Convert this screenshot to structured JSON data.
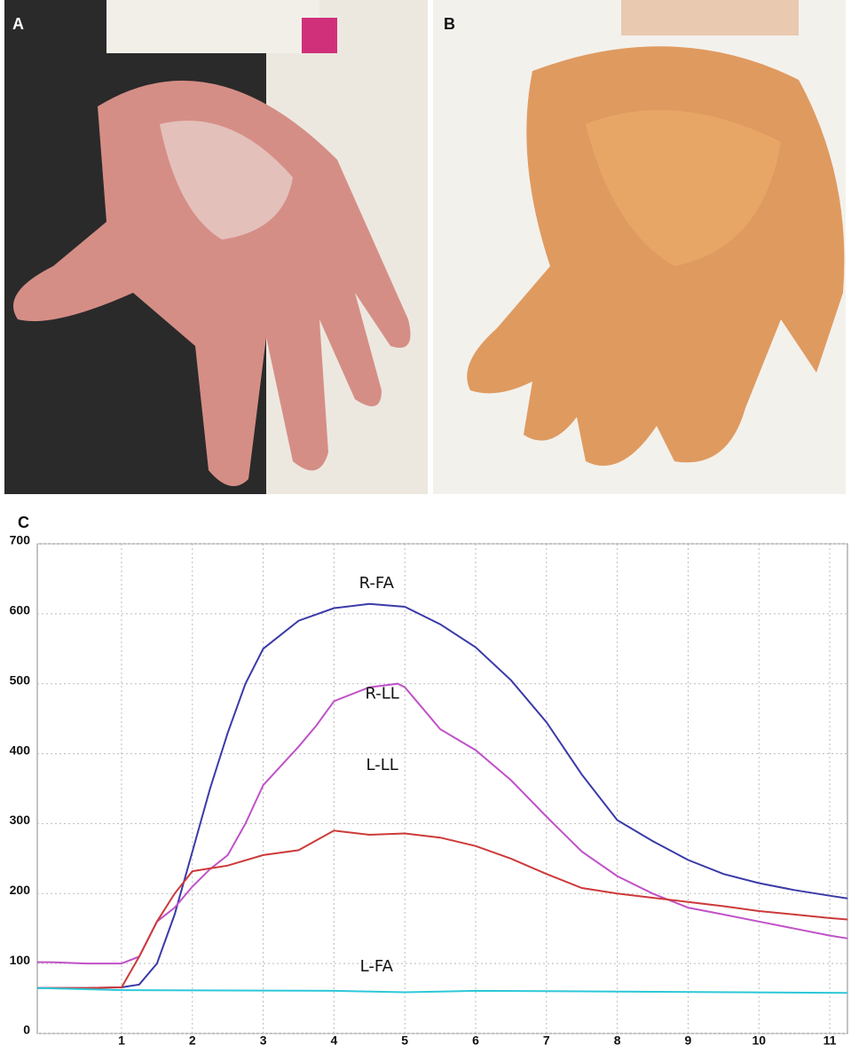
{
  "panels": [
    {
      "label": "A"
    },
    {
      "label": "B"
    }
  ],
  "chart_data": {
    "type": "line",
    "panel_label": "C",
    "xlim": [
      -0.19,
      11.25
    ],
    "ylim": [
      0,
      700
    ],
    "xticks": [
      1,
      2,
      3,
      4,
      5,
      6,
      7,
      8,
      9,
      10,
      11
    ],
    "yticks": [
      0,
      100,
      200,
      300,
      400,
      500,
      600,
      700
    ],
    "grid": true,
    "series": [
      {
        "name": "R-FA",
        "color": "#3a3aa8",
        "x": [
          -0.19,
          0,
          0.5,
          1,
          1.25,
          1.5,
          1.75,
          2,
          2.25,
          2.5,
          2.75,
          3,
          3.5,
          4,
          4.5,
          5,
          5.5,
          6,
          6.5,
          7,
          7.5,
          8,
          8.5,
          9,
          9.5,
          10,
          10.5,
          11,
          11.25
        ],
        "values": [
          65,
          65,
          65,
          66,
          70,
          100,
          170,
          260,
          350,
          430,
          500,
          550,
          590,
          608,
          614,
          610,
          585,
          552,
          505,
          445,
          370,
          305,
          275,
          248,
          228,
          215,
          205,
          197,
          193
        ]
      },
      {
        "name": "R-LL",
        "color": "#c052c8",
        "x": [
          -0.19,
          0,
          0.5,
          1,
          1.25,
          1.5,
          1.75,
          2,
          2.25,
          2.5,
          2.75,
          3,
          3.5,
          3.75,
          4,
          4.5,
          4.9,
          5,
          5.25,
          5.5,
          6,
          6.5,
          7,
          7.5,
          8,
          8.5,
          9,
          9.5,
          10,
          10.5,
          11,
          11.25
        ],
        "values": [
          102,
          102,
          100,
          100,
          110,
          160,
          180,
          210,
          235,
          255,
          300,
          355,
          410,
          440,
          475,
          495,
          500,
          495,
          465,
          435,
          405,
          362,
          310,
          260,
          225,
          200,
          180,
          170,
          160,
          150,
          140,
          136
        ]
      },
      {
        "name": "L-LL",
        "color": "#cc3a3a",
        "x": [
          -0.19,
          0,
          0.5,
          1,
          1.25,
          1.5,
          1.75,
          2,
          2.25,
          2.5,
          3,
          3.5,
          4,
          4.5,
          5,
          5.5,
          6,
          6.5,
          7,
          7.5,
          8,
          8.5,
          9,
          9.5,
          10,
          10.5,
          11,
          11.25
        ],
        "values": [
          65,
          65,
          65,
          66,
          110,
          160,
          200,
          232,
          236,
          240,
          255,
          262,
          290,
          284,
          286,
          280,
          268,
          250,
          228,
          208,
          200,
          194,
          188,
          182,
          175,
          170,
          165,
          163
        ]
      },
      {
        "name": "L-FA",
        "color": "#2cc8d8",
        "x": [
          -0.19,
          1,
          4,
          5,
          6,
          8,
          11.25
        ],
        "values": [
          65,
          62,
          61,
          59,
          61,
          60,
          58
        ]
      }
    ]
  }
}
